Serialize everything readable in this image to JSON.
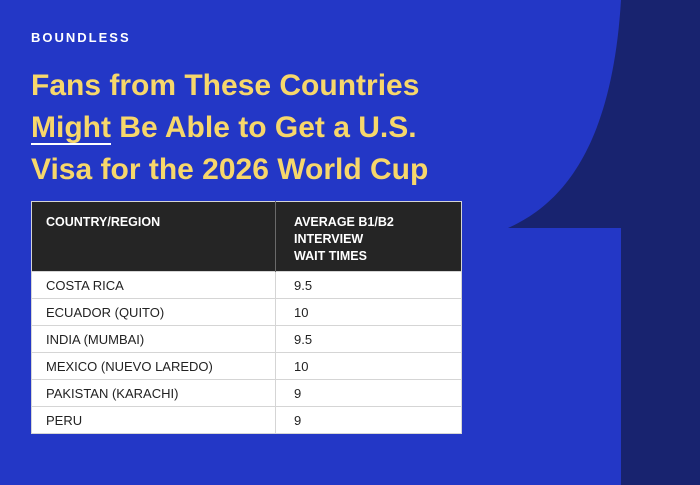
{
  "brand": "BOUNDLESS",
  "title": {
    "line1": "Fans from These Countries",
    "line2_underlined": "Might",
    "line2_rest": " Be Able to Get a U.S.",
    "line3": "Visa for the 2026 World Cup"
  },
  "table": {
    "headers": {
      "col1": "COUNTRY/REGION",
      "col2_line1": "AVERAGE B1/B2",
      "col2_line2": "INTERVIEW",
      "col2_line3": "WAIT TIMES"
    },
    "rows": [
      {
        "country": "COSTA RICA",
        "wait": "9.5"
      },
      {
        "country": "ECUADOR (QUITO)",
        "wait": "10"
      },
      {
        "country": "INDIA (MUMBAI)",
        "wait": "9.5"
      },
      {
        "country": "MEXICO (NUEVO LAREDO)",
        "wait": "10"
      },
      {
        "country": "PAKISTAN (KARACHI)",
        "wait": "9"
      },
      {
        "country": "PERU",
        "wait": "9"
      }
    ]
  },
  "colors": {
    "background": "#2337c6",
    "dark_shape": "#18236f",
    "title": "#f7d76b",
    "header_bg": "#252525"
  }
}
